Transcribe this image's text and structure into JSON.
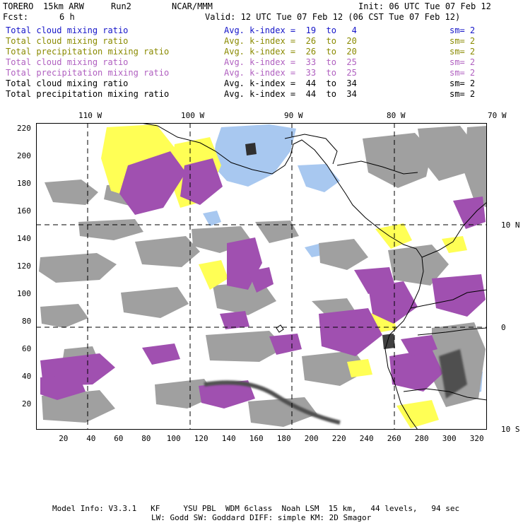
{
  "header": {
    "model": "TORERO",
    "resolution": "15km ARW",
    "run": "Run2",
    "org": "NCAR/MMM",
    "init": "Init: 06 UTC Tue 07 Feb 12",
    "fcst_label": "Fcst:",
    "fcst_value": "6 h",
    "valid": "Valid: 12 UTC Tue 07 Feb 12 (06 CST Tue 07 Feb 12)"
  },
  "legend": [
    {
      "variable": "Total cloud mixing ratio",
      "kindex": "Avg. k-index =  19  to   4",
      "sm": "sm= 2",
      "color": "#1515c8"
    },
    {
      "variable": "Total cloud mixing ratio",
      "kindex": "Avg. k-index =  26  to  20",
      "sm": "sm= 2",
      "color": "#8a8a00"
    },
    {
      "variable": "Total precipitation mixing ratio",
      "kindex": "Avg. k-index =  26  to  20",
      "sm": "sm= 2",
      "color": "#8a8a00"
    },
    {
      "variable": "Total cloud mixing ratio",
      "kindex": "Avg. k-index =  33  to  25",
      "sm": "sm= 2",
      "color": "#b060c0"
    },
    {
      "variable": "Total precipitation mixing ratio",
      "kindex": "Avg. k-index =  33  to  25",
      "sm": "sm= 2",
      "color": "#b060c0"
    },
    {
      "variable": "Total cloud mixing ratio",
      "kindex": "Avg. k-index =  44  to  34",
      "sm": "sm= 2",
      "color": "#000000"
    },
    {
      "variable": "Total precipitation mixing ratio",
      "kindex": "Avg. k-index =  44  to  34",
      "sm": "sm= 2",
      "color": "#000000"
    }
  ],
  "map": {
    "lon_labels": [
      "110 W",
      "100 W",
      "90 W",
      "80 W",
      "70 W"
    ],
    "lat_labels": [
      "10 N",
      "0",
      "10 S"
    ],
    "x_ticks": [
      "20",
      "40",
      "60",
      "80",
      "100",
      "120",
      "140",
      "160",
      "180",
      "200",
      "220",
      "240",
      "260",
      "280",
      "300",
      "320"
    ],
    "y_ticks": [
      "220",
      "200",
      "180",
      "160",
      "140",
      "120",
      "100",
      "80",
      "60",
      "40",
      "20"
    ],
    "colors": {
      "cloud_low": "#a8c8f0",
      "cloud_mid": "#ffff55",
      "cloud_high": "#a050b0",
      "cloud_top": "#a0a0a0",
      "coast": "#000000",
      "grid": "#000000"
    }
  },
  "footer": {
    "line1": "Model Info: V3.3.1   KF     YSU PBL  WDM 6class  Noah LSM  15 km,   44 levels,   94 sec",
    "line2": "LW: Godd SW: Goddard DIFF: simple KM: 2D Smagor"
  }
}
